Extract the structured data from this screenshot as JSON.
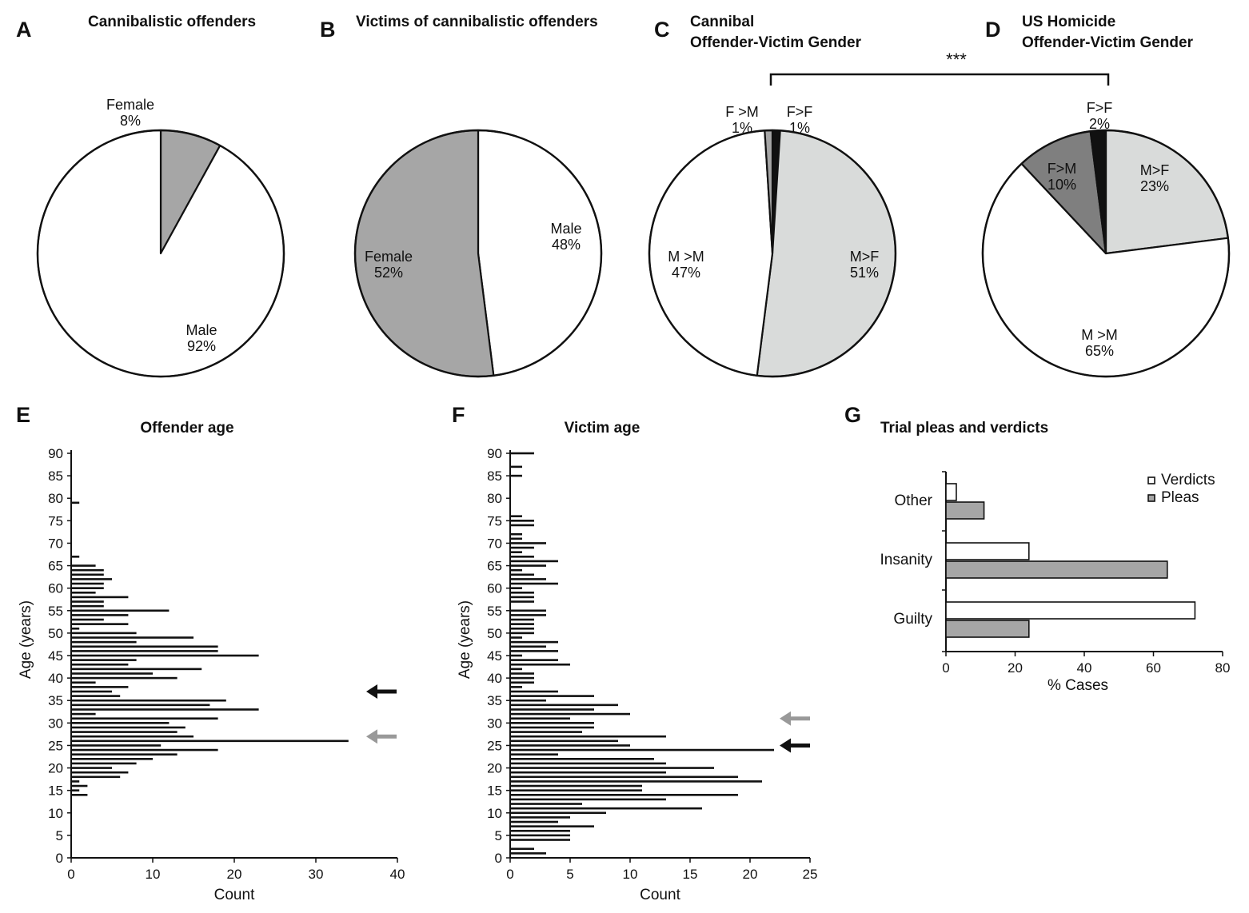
{
  "panels": {
    "A": {
      "letter": "A",
      "title": "Cannibalistic offenders"
    },
    "B": {
      "letter": "B",
      "title": "Victims of cannibalistic offenders"
    },
    "C": {
      "letter": "C",
      "title_line1": "Cannibal",
      "title_line2": "Offender-Victim Gender"
    },
    "D": {
      "letter": "D",
      "title_line1": "US Homicide",
      "title_line2": "Offender-Victim Gender"
    },
    "E": {
      "letter": "E"
    },
    "F": {
      "letter": "F"
    },
    "G": {
      "letter": "G"
    }
  },
  "significance": "***",
  "colors": {
    "white": "#ffffff",
    "gray": "#a6a6a6",
    "lightgray": "#d9dbda",
    "darkgray": "#7f7f7f",
    "black": "#111111"
  },
  "chart_data": [
    {
      "id": "A",
      "type": "pie",
      "title": "Cannibalistic offenders",
      "slices": [
        {
          "name": "Female",
          "value": 8,
          "label": "8%",
          "color": "#a6a6a6"
        },
        {
          "name": "Male",
          "value": 92,
          "label": "92%",
          "color": "#ffffff"
        }
      ]
    },
    {
      "id": "B",
      "type": "pie",
      "title": "Victims of cannibalistic offenders",
      "slices": [
        {
          "name": "Male",
          "value": 48,
          "label": "48%",
          "color": "#ffffff"
        },
        {
          "name": "Female",
          "value": 52,
          "label": "52%",
          "color": "#a6a6a6"
        }
      ]
    },
    {
      "id": "C",
      "type": "pie",
      "title": "Cannibal Offender-Victim Gender",
      "slices": [
        {
          "name": "F>F",
          "value": 1,
          "label": "1%",
          "color": "#111111"
        },
        {
          "name": "M>F",
          "value": 51,
          "label": "51%",
          "color": "#d9dbda"
        },
        {
          "name": "M >M",
          "value": 47,
          "label": "47%",
          "color": "#ffffff"
        },
        {
          "name": "F >M",
          "value": 1,
          "label": "1%",
          "color": "#a6a6a6"
        }
      ]
    },
    {
      "id": "D",
      "type": "pie",
      "title": "US Homicide Offender-Victim Gender",
      "slices": [
        {
          "name": "M>F",
          "value": 23,
          "label": "23%",
          "color": "#d9dbda"
        },
        {
          "name": "M >M",
          "value": 65,
          "label": "65%",
          "color": "#ffffff"
        },
        {
          "name": "F>M",
          "value": 10,
          "label": "10%",
          "color": "#7f7f7f"
        },
        {
          "name": "F>F",
          "value": 2,
          "label": "2%",
          "color": "#111111"
        }
      ]
    },
    {
      "id": "E",
      "type": "bar",
      "orientation": "horizontal",
      "title": "Offender age",
      "xlabel": "Count",
      "ylabel": "Age (years)",
      "xlim": [
        0,
        40
      ],
      "ylim": [
        0,
        90
      ],
      "xticks": [
        0,
        10,
        20,
        30,
        40
      ],
      "yticks": [
        0,
        5,
        10,
        15,
        20,
        25,
        30,
        35,
        40,
        45,
        50,
        55,
        60,
        65,
        70,
        75,
        80,
        85,
        90
      ],
      "ages": [
        14,
        15,
        16,
        17,
        18,
        19,
        20,
        21,
        22,
        23,
        24,
        25,
        26,
        27,
        28,
        29,
        30,
        31,
        32,
        33,
        34,
        35,
        36,
        37,
        38,
        39,
        40,
        41,
        42,
        43,
        44,
        45,
        46,
        47,
        48,
        49,
        50,
        51,
        52,
        53,
        54,
        55,
        56,
        57,
        58,
        59,
        60,
        61,
        62,
        63,
        64,
        65,
        67,
        79
      ],
      "counts": [
        2,
        1,
        2,
        1,
        6,
        7,
        5,
        8,
        10,
        13,
        18,
        11,
        34,
        15,
        13,
        14,
        12,
        18,
        3,
        23,
        17,
        19,
        6,
        5,
        7,
        3,
        13,
        10,
        16,
        7,
        8,
        23,
        18,
        18,
        8,
        15,
        8,
        1,
        7,
        4,
        7,
        12,
        4,
        4,
        7,
        3,
        4,
        4,
        5,
        4,
        4,
        3,
        1,
        1
      ],
      "arrows": [
        {
          "age": 37,
          "color": "black"
        },
        {
          "age": 27,
          "color": "gray"
        }
      ]
    },
    {
      "id": "F",
      "type": "bar",
      "orientation": "horizontal",
      "title": "Victim age",
      "xlabel": "Count",
      "ylabel": "Age (years)",
      "xlim": [
        0,
        25
      ],
      "ylim": [
        0,
        90
      ],
      "xticks": [
        0,
        5,
        10,
        15,
        20,
        25
      ],
      "yticks": [
        0,
        5,
        10,
        15,
        20,
        25,
        30,
        35,
        40,
        45,
        50,
        55,
        60,
        65,
        70,
        75,
        80,
        85,
        90
      ],
      "ages": [
        1,
        2,
        4,
        5,
        6,
        7,
        8,
        9,
        10,
        11,
        12,
        13,
        14,
        15,
        16,
        17,
        18,
        19,
        20,
        21,
        22,
        23,
        24,
        25,
        26,
        27,
        28,
        29,
        30,
        31,
        32,
        33,
        34,
        35,
        36,
        37,
        38,
        39,
        40,
        41,
        42,
        43,
        44,
        45,
        46,
        47,
        48,
        49,
        50,
        51,
        52,
        53,
        54,
        55,
        57,
        58,
        59,
        60,
        61,
        62,
        63,
        64,
        65,
        66,
        67,
        68,
        69,
        70,
        71,
        72,
        74,
        75,
        76,
        85,
        87,
        90
      ],
      "counts": [
        3,
        2,
        5,
        5,
        5,
        7,
        4,
        5,
        8,
        16,
        6,
        13,
        19,
        11,
        11,
        21,
        19,
        13,
        17,
        13,
        12,
        4,
        22,
        10,
        9,
        13,
        6,
        7,
        7,
        5,
        10,
        7,
        9,
        3,
        7,
        4,
        1,
        2,
        2,
        2,
        1,
        5,
        4,
        1,
        4,
        3,
        4,
        1,
        2,
        2,
        2,
        2,
        3,
        3,
        2,
        2,
        2,
        1,
        4,
        3,
        2,
        1,
        3,
        4,
        2,
        1,
        2,
        3,
        1,
        1,
        2,
        2,
        1,
        1,
        1,
        2
      ],
      "arrows": [
        {
          "age": 31,
          "color": "gray"
        },
        {
          "age": 25,
          "color": "black"
        }
      ]
    },
    {
      "id": "G",
      "type": "bar",
      "orientation": "horizontal",
      "title": "Trial pleas and verdicts",
      "xlabel": "% Cases",
      "xlim": [
        0,
        80
      ],
      "xticks": [
        0,
        20,
        40,
        60,
        80
      ],
      "categories": [
        "Other",
        "Insanity",
        "Guilty"
      ],
      "series": [
        {
          "name": "Verdicts",
          "values": [
            3,
            24,
            72
          ],
          "color": "#ffffff"
        },
        {
          "name": "Pleas",
          "values": [
            11,
            64,
            24
          ],
          "color": "#a6a6a6"
        }
      ]
    }
  ]
}
